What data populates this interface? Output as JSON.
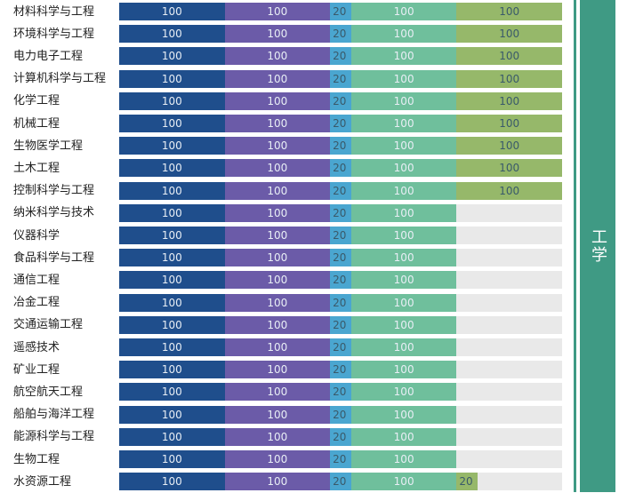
{
  "category": "工学",
  "colors": {
    "seg": [
      "#1f4e8c",
      "#6b5ba8",
      "#4aa6d0",
      "#6fbf9c",
      "#96b86a"
    ],
    "empty": "#e9e9e9",
    "band": "#3f9a84"
  },
  "chart_data": {
    "type": "bar",
    "stacked": true,
    "orientation": "horizontal",
    "categories": [
      "材料科学与工程",
      "环境科学与工程",
      "电力电子工程",
      "计算机科学与工程",
      "化学工程",
      "机械工程",
      "生物医学工程",
      "土木工程",
      "控制科学与工程",
      "纳米科学与技术",
      "仪器科学",
      "食品科学与工程",
      "通信工程",
      "冶金工程",
      "交通运输工程",
      "遥感技术",
      "矿业工程",
      "航空航天工程",
      "船舶与海洋工程",
      "能源科学与工程",
      "生物工程",
      "水资源工程"
    ],
    "series": [
      {
        "values": [
          100,
          100,
          100,
          100,
          100,
          100,
          100,
          100,
          100,
          100,
          100,
          100,
          100,
          100,
          100,
          100,
          100,
          100,
          100,
          100,
          100,
          100
        ]
      },
      {
        "values": [
          100,
          100,
          100,
          100,
          100,
          100,
          100,
          100,
          100,
          100,
          100,
          100,
          100,
          100,
          100,
          100,
          100,
          100,
          100,
          100,
          100,
          100
        ]
      },
      {
        "values": [
          20,
          20,
          20,
          20,
          20,
          20,
          20,
          20,
          20,
          20,
          20,
          20,
          20,
          20,
          20,
          20,
          20,
          20,
          20,
          20,
          20,
          20
        ]
      },
      {
        "values": [
          100,
          100,
          100,
          100,
          100,
          100,
          100,
          100,
          100,
          100,
          100,
          100,
          100,
          100,
          100,
          100,
          100,
          100,
          100,
          100,
          100,
          100
        ]
      },
      {
        "values": [
          100,
          100,
          100,
          100,
          100,
          100,
          100,
          100,
          100,
          0,
          0,
          0,
          0,
          0,
          0,
          0,
          0,
          0,
          0,
          0,
          0,
          20
        ]
      }
    ],
    "xlim": [
      0,
      420
    ],
    "title": "",
    "xlabel": "",
    "ylabel": ""
  }
}
